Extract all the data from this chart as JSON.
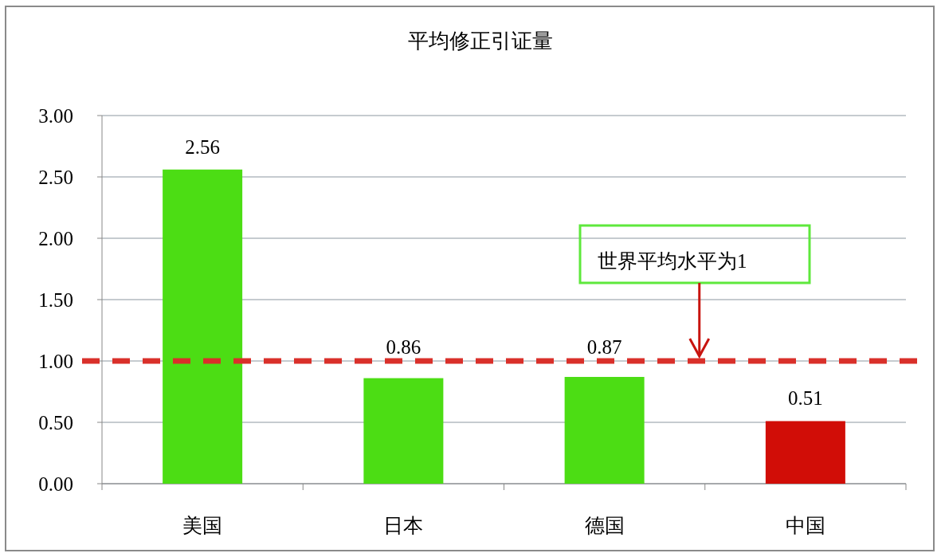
{
  "chart_data": {
    "type": "bar",
    "title": "平均修正引证量",
    "categories": [
      "美国",
      "日本",
      "德国",
      "中国"
    ],
    "values": [
      2.56,
      0.86,
      0.87,
      0.51
    ],
    "colors": [
      "#4cdd14",
      "#4cdd14",
      "#4cdd14",
      "#d10d07"
    ],
    "ylim": [
      0,
      3
    ],
    "yticks": [
      {
        "value": 0,
        "label": "0.00"
      },
      {
        "value": 0.5,
        "label": "0.50"
      },
      {
        "value": 1,
        "label": "1.00"
      },
      {
        "value": 1.5,
        "label": "1.50"
      },
      {
        "value": 2,
        "label": "2.00"
      },
      {
        "value": 2.5,
        "label": "2.50"
      },
      {
        "value": 3,
        "label": "3.00"
      }
    ],
    "grid": "y",
    "data_labels": true,
    "ref_lines": [
      {
        "axis": "y",
        "value": 1,
        "label": "世界平均水平为1",
        "color": "#d9302a",
        "line_style": "dashed"
      }
    ]
  }
}
